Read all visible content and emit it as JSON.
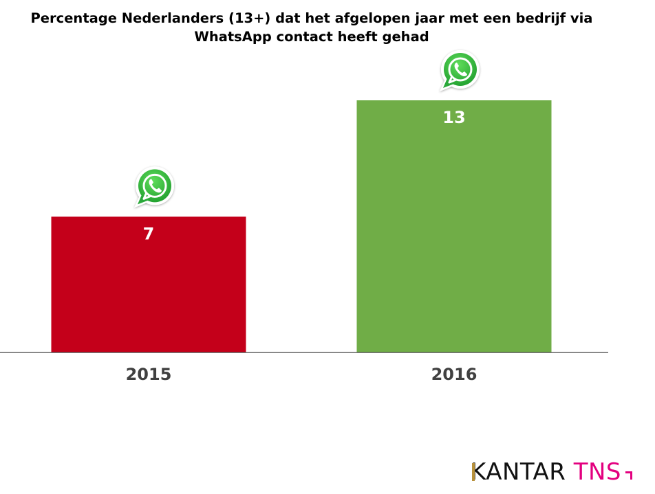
{
  "chart_data": {
    "type": "bar",
    "title": "Percentage Nederlanders (13+) dat het afgelopen jaar met een bedrijf via WhatsApp contact heeft gehad",
    "title_lines": [
      "Percentage Nederlanders (13+) dat het afgelopen jaar met een bedrijf via",
      "WhatsApp contact heeft gehad"
    ],
    "categories": [
      "2015",
      "2016"
    ],
    "values": [
      7,
      13
    ],
    "data_labels": [
      "7",
      "13"
    ],
    "bar_colors": [
      "#c4001a",
      "#70ad47"
    ],
    "xlabel": "",
    "ylabel": "",
    "ylim": [
      0,
      17.9
    ],
    "grid": false,
    "legend": "none",
    "bar_icon": "whatsapp-icon"
  },
  "brand": {
    "word1": "KANTAR",
    "word2": "TNS",
    "color_primary": "#111111",
    "color_accent": "#e3007f",
    "color_mark": "#b8913a"
  },
  "colors": {
    "axis": "#404040",
    "category_label": "#404040",
    "data_label": "#ffffff",
    "whatsapp_green": "#3bb84a"
  }
}
